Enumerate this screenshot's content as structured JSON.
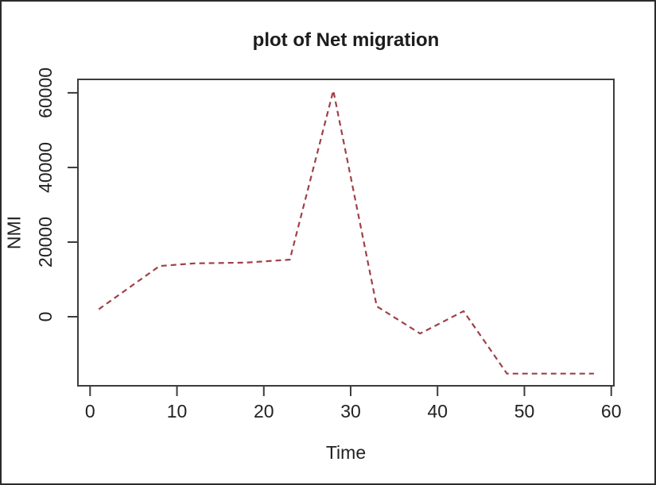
{
  "frame": {
    "window_border_color": "#2b2b2b",
    "axis_color": "#3c3c3c",
    "text_color": "#212121",
    "background": "#ffffff"
  },
  "chart_data": {
    "type": "line",
    "title": "plot of Net migration",
    "xlabel": "Time",
    "ylabel": "NMI",
    "x_ticks": [
      0,
      10,
      20,
      30,
      40,
      50,
      60
    ],
    "y_ticks": [
      0,
      20000,
      40000,
      60000
    ],
    "xlim": [
      -1.4,
      60.3
    ],
    "ylim": [
      -18500,
      63600
    ],
    "grid": false,
    "legend_position": "none",
    "series": [
      {
        "name": "NMI",
        "color": "#a04048",
        "line_style": "dashed",
        "x": [
          1,
          8,
          12,
          18,
          23,
          28,
          33,
          38,
          43,
          48,
          58
        ],
        "y": [
          2000,
          13600,
          14300,
          14500,
          15300,
          60600,
          2800,
          -4500,
          1500,
          -15250,
          -15250
        ]
      }
    ]
  }
}
